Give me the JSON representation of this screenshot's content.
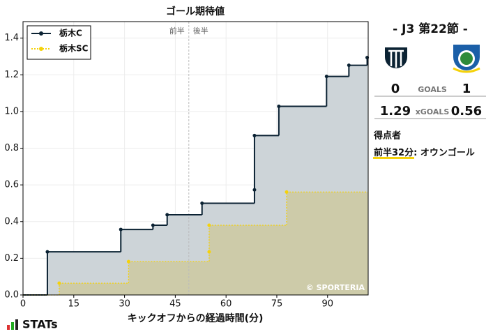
{
  "chart_data": {
    "type": "step",
    "title": "ゴール期待値",
    "xlabel": "キックオフからの経過時間(分)",
    "xlim": [
      0,
      102
    ],
    "ylim": [
      0,
      1.49
    ],
    "xticks": [
      0,
      15,
      30,
      45,
      60,
      75,
      90
    ],
    "yticks": [
      {
        "value": 0,
        "label": "0.0"
      },
      0.2,
      0.4,
      0.6,
      0.8,
      {
        "value": 1,
        "label": "1.0"
      },
      1.2,
      1.4
    ],
    "grid": true,
    "legend": "upper left",
    "half_time": {
      "x": 49,
      "labels": [
        "前半",
        "後半"
      ]
    },
    "watermark": "© SPORTERIA",
    "series": [
      {
        "name": "栃木C",
        "color": "#0b2233",
        "fill": "#cdd4d8",
        "style": "solid",
        "x": [
          7.2,
          28.9,
          38.4,
          42.6,
          52.9,
          68.4,
          68.4,
          75.6,
          89.7,
          96.3,
          101.7
        ],
        "values": [
          0.235,
          0.357,
          0.38,
          0.437,
          0.5,
          0.573,
          0.869,
          1.028,
          1.191,
          1.252,
          1.294
        ]
      },
      {
        "name": "栃木SC",
        "color": "#f5d20a",
        "fill": "#cdc9a1",
        "style": "dotted",
        "x": [
          10.7,
          31.2,
          55,
          55,
          77.9
        ],
        "values": [
          0.064,
          0.182,
          0.235,
          0.38,
          0.561
        ]
      }
    ]
  },
  "panel": {
    "match": "-  J3 第22節  -",
    "home_goals": "0",
    "goals_label": "GOALS",
    "away_goals": "1",
    "home_xg": "1.29",
    "xg_label": "xGOALS",
    "away_xg": "0.56",
    "scorers_title": "得点者",
    "scorer_time": "前半32分",
    "scorer_sep": ": ",
    "scorer_name": "オウンゴール"
  },
  "brand": "STATs"
}
